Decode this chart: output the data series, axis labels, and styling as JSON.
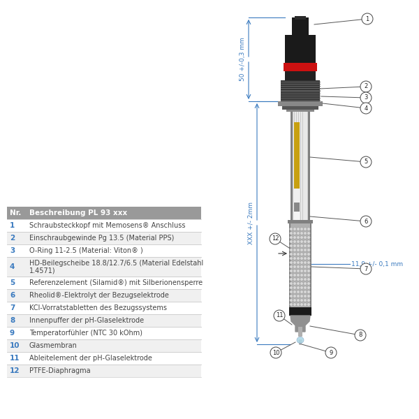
{
  "background_color": "#ffffff",
  "table_header": [
    "Nr.",
    "Beschreibung PL 93 xxx"
  ],
  "table_header_bg": "#999999",
  "table_header_color": "#ffffff",
  "table_rows": [
    [
      "1",
      "Schraubsteckkopf mit Memosens® Anschluss"
    ],
    [
      "2",
      "Einschraubgewinde Pg 13.5 (Material PPS)"
    ],
    [
      "3",
      "O-Ring 11-2.5 (Material: Viton® )"
    ],
    [
      "4",
      "HD-Beilegscheibe 18.8/12.7/6.5 (Material Edelstahl\n1.4571)"
    ],
    [
      "5",
      "Referenzelement (Silamid®) mit Silberionensperre"
    ],
    [
      "6",
      "Rheolid®-Elektrolyt der Bezugselektrode"
    ],
    [
      "7",
      "KCl-Vorratstabletten des Bezugssystems"
    ],
    [
      "8",
      "Innenpuffer der pH-Glaselektrode"
    ],
    [
      "9",
      "Temperatorfühler (NTC 30 kOhm)"
    ],
    [
      "10",
      "Glasmembran"
    ],
    [
      "11",
      "Ableitelement der pH-Glaselektrode"
    ],
    [
      "12",
      "PTFE-Diaphragma"
    ]
  ],
  "row_colors": [
    "#ffffff",
    "#f0f0f0"
  ],
  "text_color_nr": "#3a7abf",
  "text_color_desc": "#444444",
  "dim_text_color": "#3a7abf",
  "line_color": "#555555",
  "dim1": "50 +/-0,3 mm",
  "dim2": "XXX +/- 2mm",
  "dim3": "11,9 +/- 0,1 mm"
}
